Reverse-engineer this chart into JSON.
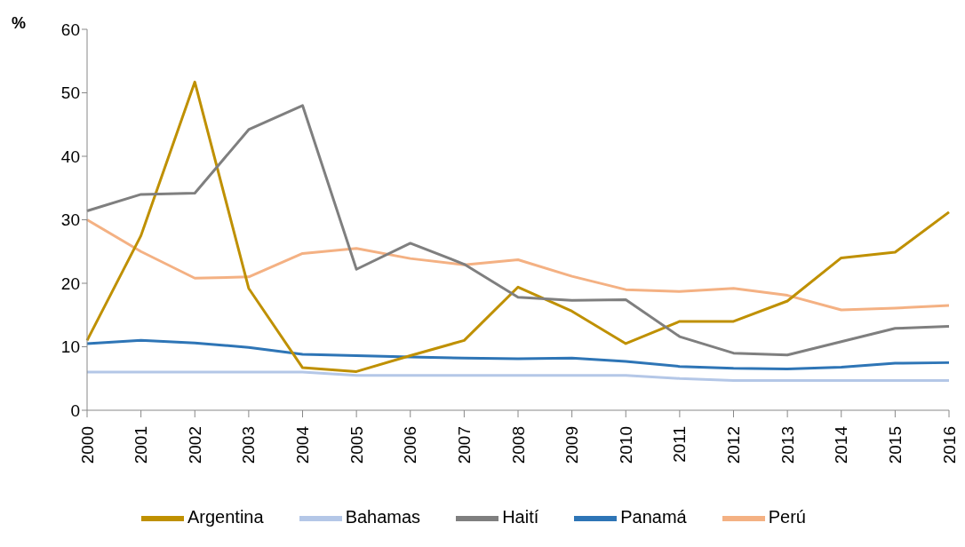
{
  "chart_data": {
    "type": "line",
    "ylabel": "%",
    "categories": [
      "2000",
      "2001",
      "2002",
      "2003",
      "2004",
      "2005",
      "2006",
      "2007",
      "2008",
      "2009",
      "2010",
      "2011",
      "2012",
      "2013",
      "2014",
      "2015",
      "2016"
    ],
    "series": [
      {
        "name": "Panamá",
        "color": "#2e75b6",
        "values": [
          10.5,
          11,
          10.6,
          9.9,
          8.8,
          8.6,
          8.4,
          8.2,
          8.1,
          8.2,
          7.7,
          6.9,
          6.6,
          6.5,
          6.8,
          7.4,
          7.5
        ]
      },
      {
        "name": "Perú",
        "color": "#f4b183",
        "values": [
          30,
          25,
          20.8,
          21,
          24.7,
          25.5,
          23.9,
          22.9,
          23.7,
          21.1,
          19,
          18.7,
          19.2,
          18.1,
          15.8,
          16.1,
          16.5
        ]
      },
      {
        "name": "Argentina",
        "color": "#bf9000",
        "values": [
          11,
          27.5,
          51.7,
          19.2,
          6.7,
          6.1,
          8.6,
          11,
          19.4,
          15.6,
          10.5,
          14,
          14,
          17.2,
          24,
          24.9,
          31.2
        ]
      },
      {
        "name": "Bahamas",
        "color": "#b4c7e7",
        "values": [
          6,
          6,
          6,
          6,
          6,
          5.5,
          5.5,
          5.5,
          5.5,
          5.5,
          5.5,
          5,
          4.7,
          4.7,
          4.7,
          4.7,
          4.7
        ]
      },
      {
        "name": "Haití",
        "color": "#7f7f7f",
        "values": [
          31.4,
          34,
          34.2,
          44.2,
          48,
          22.2,
          26.3,
          23,
          17.8,
          17.3,
          17.4,
          11.6,
          9,
          8.7,
          10.8,
          12.9,
          13.2
        ]
      }
    ],
    "ylim": [
      0,
      60
    ],
    "yticks": [
      0,
      10,
      20,
      30,
      40,
      50,
      60
    ],
    "grid": false,
    "legend": "bottom",
    "marker": "none",
    "line_style": "solid"
  }
}
